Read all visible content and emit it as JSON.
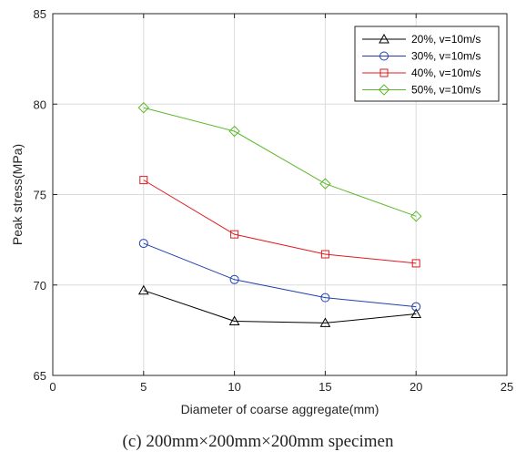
{
  "caption": "(c) 200mm×200mm×200mm specimen",
  "chart_data": {
    "type": "line",
    "title": "",
    "xlabel": "Diameter of coarse aggregate(mm)",
    "ylabel": "Peak stress(MPa)",
    "xlim": [
      0,
      25
    ],
    "ylim": [
      65,
      85
    ],
    "xticks": [
      0,
      5,
      10,
      15,
      20,
      25
    ],
    "yticks": [
      65,
      70,
      75,
      80,
      85
    ],
    "grid": true,
    "legend_position": "top-right",
    "x": [
      5,
      10,
      15,
      20
    ],
    "series": [
      {
        "name": "20%, v=10m/s",
        "color": "#000000",
        "marker": "triangle",
        "values": [
          69.7,
          68.0,
          67.9,
          68.4
        ]
      },
      {
        "name": "30%, v=10m/s",
        "color": "#1f3fae",
        "marker": "circle",
        "values": [
          72.3,
          70.3,
          69.3,
          68.8
        ]
      },
      {
        "name": "40%, v=10m/s",
        "color": "#e0191e",
        "marker": "square",
        "values": [
          75.8,
          72.8,
          71.7,
          71.2
        ]
      },
      {
        "name": "50%, v=10m/s",
        "color": "#5cb82a",
        "marker": "diamond",
        "values": [
          79.8,
          78.5,
          75.6,
          73.8
        ]
      }
    ]
  }
}
